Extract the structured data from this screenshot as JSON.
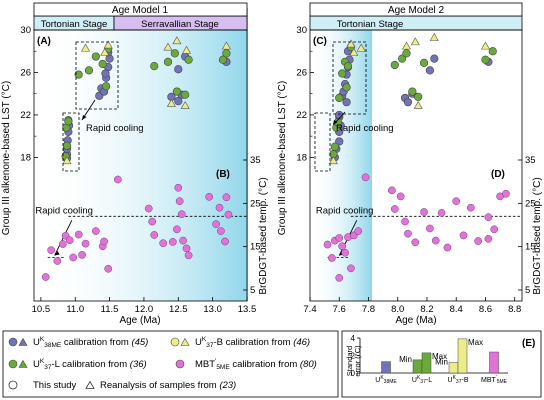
{
  "colors": {
    "u38me": "#7272b8",
    "l": "#6aaa3a",
    "b": "#ecec8a",
    "mbt": "#e072d8",
    "tortonian": "#cfeef6",
    "serravallian": "#d6bff0"
  },
  "panels": {
    "model1_title": "Age Model 1",
    "model2_title": "Age Model 2",
    "tortonian_label": "Tortonian Stage",
    "serravallian_label": "Serravallian Stage",
    "A": "(A)",
    "B": "(B)",
    "C": "(C)",
    "D": "(D)",
    "E": "(E)",
    "rapid_cooling": "Rapid cooling",
    "ylabel_left": "Group III alkenone-based LST (°C)",
    "ylabel_right": "BrGDGT-based temp. (°C)",
    "xlabel": "Age (Ma)"
  },
  "legend": {
    "u38me_pre": "U",
    "u38me_sup": "K",
    "u38me_sub": "38ME",
    "u38me_post": " calibration from ",
    "u38me_ref": "(45)",
    "l_pre": "U",
    "l_sup": "K",
    "l_sub": "37",
    "l_post": "-L calibration from ",
    "l_ref": "(36)",
    "b_pre": "U",
    "b_sup": "K",
    "b_sub": "37",
    "b_post": "-B calibration from ",
    "b_ref": "(46)",
    "mbt_pre": "MBT",
    "mbt_sup": "'",
    "mbt_sub": "5ME",
    "mbt_post": " calibration from ",
    "mbt_ref": "(80)",
    "this_study": "This study",
    "reanalysis": "Reanalysis of samples from ",
    "reanalysis_ref": "(23)"
  },
  "chart_data": [
    {
      "panel": "A",
      "type": "scatter",
      "title": "Age Model 1",
      "xlabel": "Age (Ma)",
      "ylabel": "Group III alkenone-based LST (°C)",
      "xlim": [
        10.4,
        13.5
      ],
      "ylim": [
        17,
        30
      ],
      "yticks": [
        18,
        22,
        26,
        30
      ],
      "series": [
        {
          "key": "u38me",
          "points": [
            [
              10.88,
              18.3
            ],
            [
              10.88,
              18.8
            ],
            [
              10.89,
              19.6
            ],
            [
              10.9,
              20.4
            ],
            [
              10.91,
              21.0
            ],
            [
              10.9,
              21.5
            ],
            [
              10.88,
              17.9
            ],
            [
              11.35,
              23.8
            ],
            [
              11.38,
              24.5
            ],
            [
              11.42,
              24.2
            ],
            [
              11.45,
              25.5
            ],
            [
              11.48,
              26.5
            ],
            [
              11.5,
              27.3
            ],
            [
              11.48,
              27.9
            ],
            [
              11.44,
              25.9
            ],
            [
              12.4,
              23.7
            ],
            [
              12.5,
              23.3
            ],
            [
              12.55,
              23.9
            ],
            [
              12.5,
              26.3
            ],
            [
              12.6,
              27.5
            ],
            [
              13.2,
              27.0
            ]
          ]
        },
        {
          "key": "l",
          "points": [
            [
              10.86,
              18.1
            ],
            [
              10.88,
              19.1
            ],
            [
              10.87,
              20.8
            ],
            [
              10.9,
              21.4
            ],
            [
              11.05,
              25.8
            ],
            [
              11.2,
              26.2
            ],
            [
              11.3,
              27.5
            ],
            [
              11.4,
              26.8
            ],
            [
              11.48,
              28.2
            ],
            [
              11.45,
              24.7
            ],
            [
              12.15,
              26.6
            ],
            [
              12.35,
              27.0
            ],
            [
              12.45,
              27.8
            ],
            [
              12.48,
              24.2
            ],
            [
              12.6,
              23.9
            ],
            [
              12.65,
              27.2
            ],
            [
              13.15,
              27.2
            ],
            [
              13.2,
              27.8
            ]
          ]
        },
        {
          "key": "b",
          "points": [
            [
              10.88,
              17.7
            ],
            [
              11.48,
              28.6
            ],
            [
              11.43,
              27.9
            ],
            [
              12.35,
              28.4
            ],
            [
              12.48,
              29.0
            ],
            [
              12.62,
              28.1
            ],
            [
              12.6,
              22.9
            ],
            [
              13.2,
              28.5
            ],
            [
              11.15,
              28.3
            ],
            [
              12.4,
              23.1
            ]
          ]
        }
      ]
    },
    {
      "panel": "B",
      "type": "scatter",
      "xlabel": "Age (Ma)",
      "ylabel": "BrGDGT-based temp. (°C)",
      "xlim": [
        10.4,
        13.5
      ],
      "ylim": [
        5,
        35
      ],
      "yticks": [
        5,
        15,
        25,
        35
      ],
      "xticks": [
        10.5,
        11.0,
        11.5,
        12.0,
        12.5,
        13.0,
        13.5
      ],
      "series": [
        {
          "key": "mbt",
          "points": [
            [
              10.57,
              8.0
            ],
            [
              10.65,
              14.2
            ],
            [
              10.74,
              11.7
            ],
            [
              10.82,
              15.6
            ],
            [
              10.86,
              17.5
            ],
            [
              10.92,
              16.5
            ],
            [
              10.97,
              12.5
            ],
            [
              11.05,
              17.8
            ],
            [
              11.1,
              13.1
            ],
            [
              11.15,
              15.7
            ],
            [
              11.3,
              18.6
            ],
            [
              11.4,
              15.1
            ],
            [
              11.42,
              16.2
            ],
            [
              11.48,
              9.9
            ],
            [
              11.62,
              30.5
            ],
            [
              12.07,
              23.8
            ],
            [
              12.12,
              20.8
            ],
            [
              12.15,
              17.7
            ],
            [
              12.28,
              15.8
            ],
            [
              12.42,
              16.1
            ],
            [
              12.48,
              19.0
            ],
            [
              12.5,
              28.6
            ],
            [
              12.52,
              25.5
            ],
            [
              12.55,
              22.5
            ],
            [
              12.57,
              16.4
            ],
            [
              12.62,
              14.6
            ],
            [
              12.65,
              13.0
            ],
            [
              12.95,
              26.5
            ],
            [
              13.05,
              20.2
            ],
            [
              13.1,
              24.0
            ],
            [
              13.12,
              18.6
            ],
            [
              13.18,
              16.2
            ],
            [
              13.2,
              26.4
            ],
            [
              13.23,
              22.4
            ]
          ]
        }
      ],
      "annotation": "Rapid cooling"
    },
    {
      "panel": "C",
      "type": "scatter",
      "title": "Age Model 2",
      "xlabel": "Age (Ma)",
      "ylabel": "Group III alkenone-based LST (°C)",
      "xlim": [
        7.4,
        8.85
      ],
      "ylim": [
        17,
        30
      ],
      "yticks": [
        18,
        22,
        26,
        30
      ],
      "series": [
        {
          "key": "u38me",
          "points": [
            [
              7.57,
              18.0
            ],
            [
              7.58,
              18.8
            ],
            [
              7.6,
              19.5
            ],
            [
              7.6,
              20.4
            ],
            [
              7.61,
              21.0
            ],
            [
              7.6,
              21.8
            ],
            [
              7.6,
              22.0
            ],
            [
              7.62,
              23.8
            ],
            [
              7.63,
              24.2
            ],
            [
              7.64,
              24.9
            ],
            [
              7.65,
              25.8
            ],
            [
              7.66,
              26.5
            ],
            [
              7.67,
              27.2
            ],
            [
              7.66,
              28.0
            ],
            [
              7.65,
              23.2
            ],
            [
              8.05,
              23.6
            ],
            [
              8.07,
              23.2
            ],
            [
              8.1,
              24.0
            ],
            [
              8.22,
              26.2
            ],
            [
              8.25,
              27.3
            ],
            [
              8.62,
              27.0
            ]
          ]
        },
        {
          "key": "l",
          "points": [
            [
              7.56,
              18.3
            ],
            [
              7.57,
              19.0
            ],
            [
              7.58,
              20.8
            ],
            [
              7.59,
              21.3
            ],
            [
              7.6,
              23.6
            ],
            [
              7.62,
              25.9
            ],
            [
              7.64,
              27.0
            ],
            [
              7.66,
              26.6
            ],
            [
              7.68,
              28.4
            ],
            [
              7.65,
              24.6
            ],
            [
              7.98,
              26.7
            ],
            [
              8.03,
              27.3
            ],
            [
              8.06,
              27.8
            ],
            [
              8.1,
              24.2
            ],
            [
              8.14,
              23.7
            ],
            [
              8.18,
              26.9
            ],
            [
              8.6,
              27.2
            ],
            [
              8.65,
              28.0
            ]
          ]
        },
        {
          "key": "b",
          "points": [
            [
              7.56,
              17.7
            ],
            [
              7.68,
              28.7
            ],
            [
              7.7,
              27.9
            ],
            [
              8.06,
              28.5
            ],
            [
              8.12,
              28.9
            ],
            [
              8.25,
              29.3
            ],
            [
              8.6,
              28.5
            ],
            [
              7.75,
              28.3
            ],
            [
              8.14,
              22.9
            ]
          ]
        }
      ]
    },
    {
      "panel": "D",
      "type": "scatter",
      "xlabel": "Age (Ma)",
      "ylabel": "BrGDGT-based temp. (°C)",
      "xlim": [
        7.4,
        8.85
      ],
      "ylim": [
        5,
        35
      ],
      "yticks": [
        5,
        15,
        25,
        35
      ],
      "xticks": [
        7.4,
        7.6,
        7.8,
        8.0,
        8.2,
        8.4,
        8.6,
        8.8
      ],
      "series": [
        {
          "key": "mbt",
          "points": [
            [
              7.52,
              15.5
            ],
            [
              7.55,
              12.4
            ],
            [
              7.57,
              16.4
            ],
            [
              7.6,
              17.0
            ],
            [
              7.62,
              15.1
            ],
            [
              7.64,
              13.6
            ],
            [
              7.66,
              17.2
            ],
            [
              7.68,
              10.0
            ],
            [
              7.7,
              17.6
            ],
            [
              7.73,
              18.6
            ],
            [
              7.6,
              7.8
            ],
            [
              7.78,
              31.0
            ],
            [
              7.96,
              28.0
            ],
            [
              7.98,
              23.7
            ],
            [
              8.02,
              26.6
            ],
            [
              8.05,
              20.8
            ],
            [
              8.07,
              18.0
            ],
            [
              8.12,
              16.0
            ],
            [
              8.18,
              23.0
            ],
            [
              8.22,
              19.2
            ],
            [
              8.26,
              16.4
            ],
            [
              8.3,
              22.8
            ],
            [
              8.34,
              14.8
            ],
            [
              8.4,
              25.5
            ],
            [
              8.45,
              17.6
            ],
            [
              8.5,
              24.0
            ],
            [
              8.55,
              16.3
            ],
            [
              8.62,
              21.8
            ],
            [
              8.66,
              19.0
            ],
            [
              8.7,
              26.6
            ],
            [
              8.74,
              27.2
            ],
            [
              8.62,
              16.8
            ]
          ]
        }
      ],
      "annotation": "Rapid cooling"
    },
    {
      "panel": "E",
      "type": "bar",
      "ylabel": "Standard error (°C)",
      "ylim": [
        0,
        4
      ],
      "yticks": [
        0,
        2,
        4
      ],
      "categories": [
        "UK38ME",
        "UK37-L",
        "UK37-B",
        "MBT'5ME"
      ],
      "bars": [
        {
          "category": "UK38ME",
          "key": "u38me",
          "values": [
            1.3
          ],
          "labels": []
        },
        {
          "category": "UK37-L",
          "key": "l",
          "values": [
            1.5,
            2.3
          ],
          "labels": [
            "Min",
            "Max"
          ]
        },
        {
          "category": "UK37-B",
          "key": "b",
          "values": [
            1.2,
            3.9
          ],
          "labels": [
            "Min",
            "Max"
          ]
        },
        {
          "category": "MBT'5ME",
          "key": "mbt",
          "values": [
            2.4
          ],
          "labels": []
        }
      ]
    }
  ]
}
